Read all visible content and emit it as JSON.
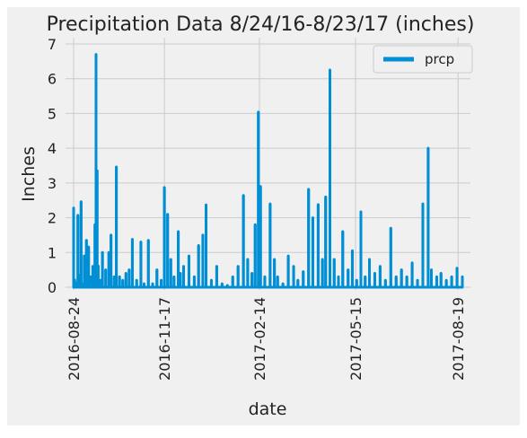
{
  "chart_data": {
    "type": "line",
    "title": "Precipitation Data 8/24/16-8/23/17 (inches)",
    "xlabel": "date",
    "ylabel": "Inches",
    "x_range": [
      "2016-08-24",
      "2017-08-23"
    ],
    "ylim": [
      0,
      7
    ],
    "y_ticks": [
      "0",
      "1",
      "2",
      "3",
      "4",
      "5",
      "6",
      "7"
    ],
    "x_ticks": [
      "2016-08-24",
      "2016-11-17",
      "2017-02-14",
      "2017-05-15",
      "2017-08-19"
    ],
    "grid": true,
    "legend_position": "top-right",
    "series": [
      {
        "name": "prcp",
        "color": "#008fd5",
        "x": [
          "2016-08-24",
          "2016-08-25",
          "2016-08-26",
          "2016-08-27",
          "2016-08-28",
          "2016-08-29",
          "2016-08-30",
          "2016-08-31",
          "2016-09-01",
          "2016-09-03",
          "2016-09-05",
          "2016-09-07",
          "2016-09-09",
          "2016-09-11",
          "2016-09-13",
          "2016-09-14",
          "2016-09-15",
          "2016-09-16",
          "2016-09-18",
          "2016-09-20",
          "2016-09-23",
          "2016-09-26",
          "2016-09-28",
          "2016-10-01",
          "2016-10-03",
          "2016-10-06",
          "2016-10-09",
          "2016-10-12",
          "2016-10-15",
          "2016-10-18",
          "2016-10-22",
          "2016-10-26",
          "2016-10-29",
          "2016-11-02",
          "2016-11-06",
          "2016-11-10",
          "2016-11-14",
          "2016-11-17",
          "2016-11-20",
          "2016-11-23",
          "2016-11-26",
          "2016-11-30",
          "2016-12-02",
          "2016-12-05",
          "2016-12-10",
          "2016-12-15",
          "2016-12-19",
          "2016-12-23",
          "2016-12-26",
          "2016-12-31",
          "2017-01-05",
          "2017-01-10",
          "2017-01-15",
          "2017-01-20",
          "2017-01-25",
          "2017-01-30",
          "2017-02-03",
          "2017-02-07",
          "2017-02-10",
          "2017-02-13",
          "2017-02-15",
          "2017-02-19",
          "2017-02-24",
          "2017-02-28",
          "2017-03-03",
          "2017-03-08",
          "2017-03-13",
          "2017-03-18",
          "2017-03-22",
          "2017-03-27",
          "2017-04-01",
          "2017-04-05",
          "2017-04-10",
          "2017-04-14",
          "2017-04-17",
          "2017-04-21",
          "2017-04-25",
          "2017-04-29",
          "2017-05-03",
          "2017-05-08",
          "2017-05-12",
          "2017-05-16",
          "2017-05-20",
          "2017-05-24",
          "2017-05-28",
          "2017-06-02",
          "2017-06-07",
          "2017-06-12",
          "2017-06-17",
          "2017-06-22",
          "2017-06-27",
          "2017-07-02",
          "2017-07-07",
          "2017-07-12",
          "2017-07-17",
          "2017-07-22",
          "2017-07-25",
          "2017-07-30",
          "2017-08-03",
          "2017-08-08",
          "2017-08-13",
          "2017-08-18",
          "2017-08-23"
        ],
        "values": [
          2.28,
          0.21,
          0.01,
          0.12,
          2.07,
          0.35,
          0.05,
          2.46,
          0.1,
          0.9,
          1.35,
          1.16,
          0.3,
          0.6,
          1.8,
          6.7,
          3.35,
          0.61,
          0.2,
          1.0,
          0.5,
          1.0,
          1.5,
          0.3,
          3.46,
          0.3,
          0.2,
          0.4,
          0.5,
          1.38,
          0.2,
          1.3,
          0.1,
          1.35,
          0.1,
          0.5,
          0.2,
          2.87,
          2.1,
          0.8,
          0.3,
          1.6,
          0.4,
          0.6,
          0.9,
          0.3,
          1.2,
          1.5,
          2.37,
          0.2,
          0.6,
          0.1,
          0.05,
          0.3,
          0.6,
          2.64,
          0.8,
          0.4,
          1.8,
          5.04,
          2.9,
          0.3,
          2.4,
          0.8,
          0.3,
          0.1,
          0.9,
          0.6,
          0.2,
          0.45,
          2.82,
          2.0,
          2.38,
          0.8,
          2.6,
          6.25,
          0.8,
          0.3,
          1.6,
          0.5,
          1.05,
          0.2,
          2.17,
          0.3,
          0.8,
          0.4,
          0.6,
          0.2,
          1.7,
          0.3,
          0.5,
          0.3,
          0.7,
          0.2,
          2.4,
          4.0,
          0.5,
          0.3,
          0.4,
          0.2,
          0.3,
          0.55,
          0.3
        ]
      }
    ]
  }
}
